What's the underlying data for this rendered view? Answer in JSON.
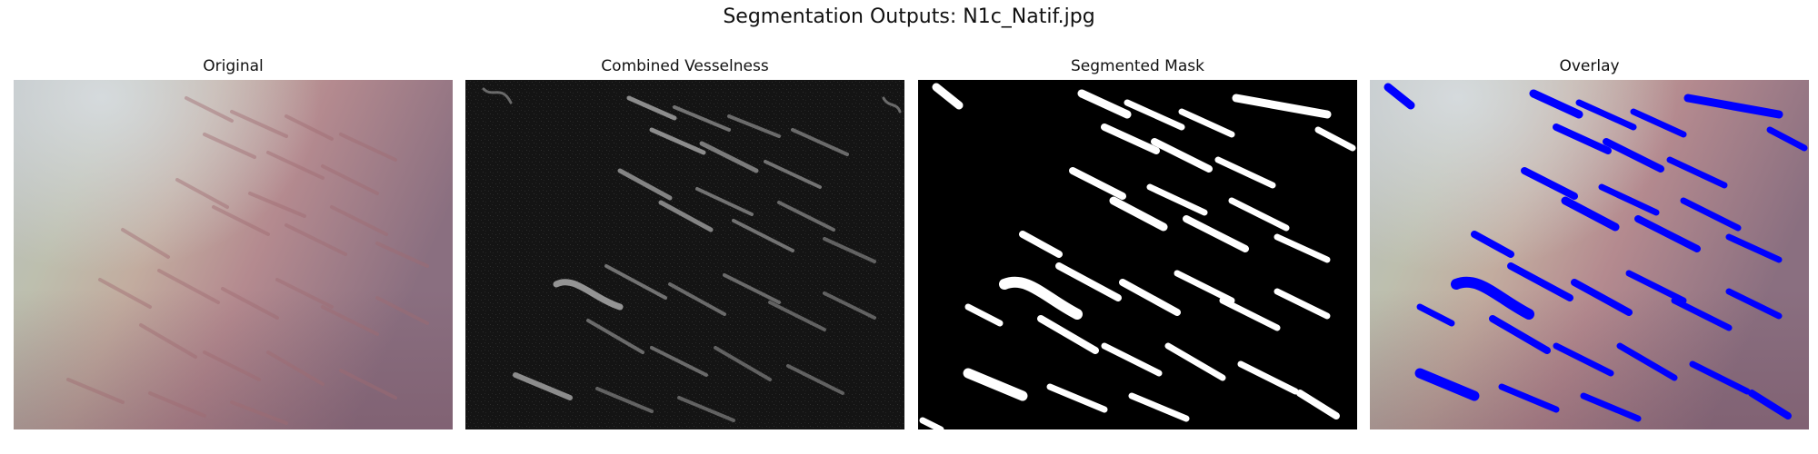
{
  "figure": {
    "suptitle": "Segmentation Outputs: N1c_Natif.jpg",
    "panels": [
      {
        "title": "Original"
      },
      {
        "title": "Combined Vesselness"
      },
      {
        "title": "Segmented Mask"
      },
      {
        "title": "Overlay"
      }
    ]
  },
  "colors": {
    "overlay_mask": "#0000ff",
    "mask_foreground": "#ffffff",
    "mask_background": "#000000"
  }
}
